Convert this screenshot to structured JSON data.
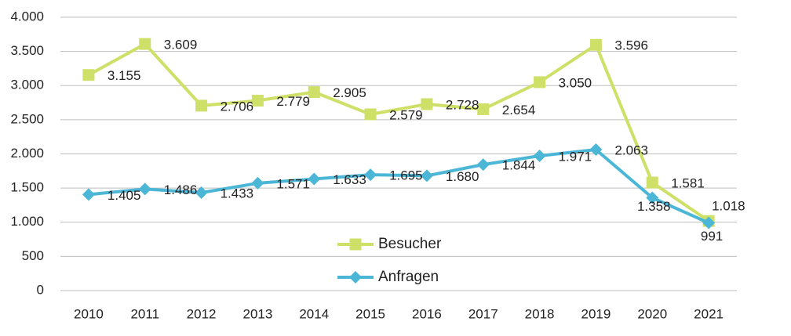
{
  "chart_data": {
    "type": "line",
    "categories": [
      "2010",
      "2011",
      "2012",
      "2013",
      "2014",
      "2015",
      "2016",
      "2017",
      "2018",
      "2019",
      "2020",
      "2021"
    ],
    "series": [
      {
        "name": "Besucher",
        "color": "#cfe068",
        "marker": "square",
        "values": [
          3155,
          3609,
          2706,
          2779,
          2905,
          2579,
          2728,
          2654,
          3050,
          3596,
          1581,
          1018
        ],
        "value_labels": [
          "3.155",
          "3.609",
          "2.706",
          "2.779",
          "2.905",
          "2.579",
          "2.728",
          "2.654",
          "3.050",
          "3.596",
          "1.581",
          "1.018"
        ]
      },
      {
        "name": "Anfragen",
        "color": "#4bb6d6",
        "marker": "diamond",
        "values": [
          1405,
          1486,
          1433,
          1571,
          1633,
          1695,
          1680,
          1844,
          1971,
          2063,
          1358,
          991
        ],
        "value_labels": [
          "1.405",
          "1.486",
          "1.433",
          "1.571",
          "1.633",
          "1.695",
          "1.680",
          "1.844",
          "1.971",
          "2.063",
          "1.358",
          "991"
        ]
      }
    ],
    "ylim": [
      0,
      4000
    ],
    "yticks": [
      0,
      500,
      {
        "value": 1000,
        "label": "1.000"
      },
      {
        "value": 1500,
        "label": "1.500"
      },
      {
        "value": 2000,
        "label": "2.000"
      },
      {
        "value": 2500,
        "label": "2.500"
      },
      {
        "value": 3000,
        "label": "3.000"
      },
      {
        "value": 3500,
        "label": "3.500"
      },
      {
        "value": 4000,
        "label": "4.000"
      }
    ],
    "grid": true
  }
}
